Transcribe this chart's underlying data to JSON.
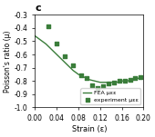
{
  "title": "c",
  "xlabel": "Strain (ε)",
  "ylabel": "Poisson's ratio (μ)",
  "xlim": [
    0.0,
    0.2
  ],
  "ylim": [
    -1.0,
    -0.3
  ],
  "xticks": [
    0.0,
    0.04,
    0.08,
    0.12,
    0.16,
    0.2
  ],
  "yticks": [
    -1.0,
    -0.9,
    -0.8,
    -0.7,
    -0.6,
    -0.5,
    -0.4,
    -0.3
  ],
  "fea_x": [
    0.0,
    0.01,
    0.02,
    0.03,
    0.04,
    0.05,
    0.06,
    0.07,
    0.08,
    0.09,
    0.1,
    0.11,
    0.12,
    0.13,
    0.14,
    0.15,
    0.16,
    0.17,
    0.18,
    0.19,
    0.2
  ],
  "fea_y": [
    -0.46,
    -0.49,
    -0.52,
    -0.56,
    -0.6,
    -0.64,
    -0.68,
    -0.72,
    -0.75,
    -0.77,
    -0.79,
    -0.8,
    -0.81,
    -0.81,
    -0.81,
    -0.81,
    -0.8,
    -0.8,
    -0.79,
    -0.78,
    -0.77
  ],
  "exp_x": [
    0.025,
    0.04,
    0.055,
    0.07,
    0.085,
    0.095,
    0.105,
    0.115,
    0.125,
    0.135,
    0.145,
    0.155,
    0.165,
    0.175,
    0.185,
    0.195
  ],
  "exp_y": [
    -0.39,
    -0.52,
    -0.61,
    -0.68,
    -0.76,
    -0.78,
    -0.83,
    -0.85,
    -0.84,
    -0.82,
    -0.81,
    -0.8,
    -0.8,
    -0.79,
    -0.78,
    -0.77
  ],
  "line_color": "#3a7d3a",
  "marker_color": "#3a7d3a",
  "legend_fea": "FEA μεε",
  "legend_exp": "experiment μεε",
  "background_color": "#ffffff",
  "grid": false
}
